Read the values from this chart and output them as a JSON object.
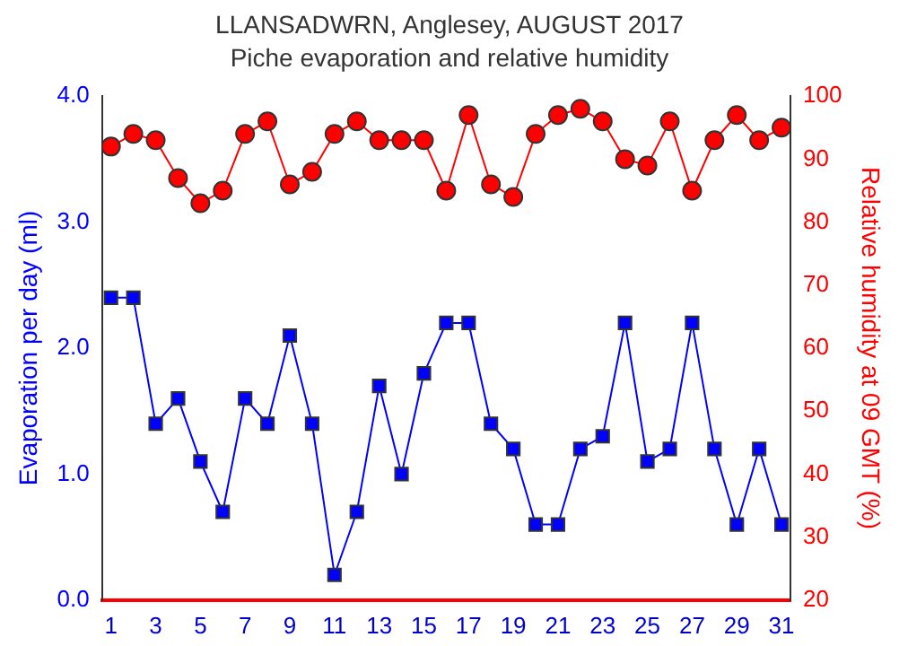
{
  "chart_data": {
    "type": "line",
    "title": "LLANSADWRN, Anglesey, AUGUST 2017",
    "subtitle": "Piche evaporation and relative humidity",
    "ylabel": "Evaporation per day (ml)",
    "y2label": "Relative humidity at 09 GMT (%)",
    "x": [
      1,
      2,
      3,
      4,
      5,
      6,
      7,
      8,
      9,
      10,
      11,
      12,
      13,
      14,
      15,
      16,
      17,
      18,
      19,
      20,
      21,
      22,
      23,
      24,
      25,
      26,
      27,
      28,
      29,
      30,
      31
    ],
    "xlim": [
      0.6,
      31.4
    ],
    "xticks": [
      1,
      3,
      5,
      7,
      9,
      11,
      13,
      15,
      17,
      19,
      21,
      23,
      25,
      27,
      29,
      31
    ],
    "ylim": [
      0,
      4
    ],
    "yticks": [
      {
        "value": 0,
        "label": "0.0"
      },
      {
        "value": 1,
        "label": "1.0"
      },
      {
        "value": 2,
        "label": "2.0"
      },
      {
        "value": 3,
        "label": "3.0"
      },
      {
        "value": 4,
        "label": "4.0"
      }
    ],
    "y2lim": [
      20,
      100
    ],
    "y2ticks": [
      20,
      30,
      40,
      50,
      60,
      70,
      80,
      90,
      100
    ],
    "grid": false,
    "legend": false,
    "line_style": "solid",
    "series": [
      {
        "color": "#0000ff",
        "marker": "square",
        "values": [
          2.4,
          2.4,
          1.4,
          1.6,
          1.1,
          0.7,
          1.6,
          1.4,
          2.1,
          1.4,
          0.2,
          0.7,
          1.7,
          1.0,
          1.8,
          2.2,
          2.2,
          1.4,
          1.2,
          0.6,
          0.6,
          1.2,
          1.3,
          2.2,
          1.1,
          1.2,
          2.2,
          1.2,
          0.6,
          1.2,
          0.6
        ]
      },
      {
        "color": "#ff0000",
        "marker": "circle",
        "axis": "y2",
        "values": [
          92,
          94,
          93,
          87,
          83,
          85,
          94,
          96,
          86,
          88,
          94,
          96,
          93,
          93,
          93,
          85,
          97,
          86,
          84,
          94,
          97,
          98,
          96,
          90,
          89,
          96,
          85,
          93,
          97,
          93,
          95
        ]
      }
    ]
  }
}
